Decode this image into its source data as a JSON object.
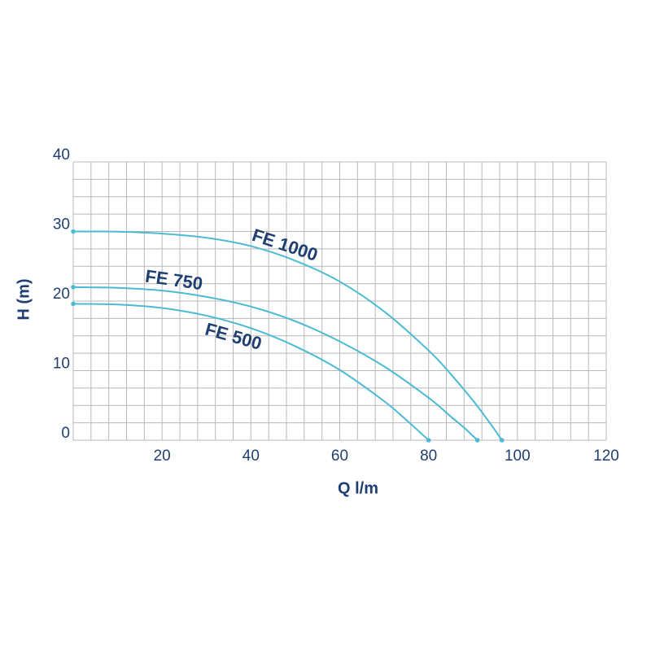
{
  "chart_data": {
    "type": "line",
    "x_label": "Q l/m",
    "y_label": "H (m)",
    "xlim": [
      0,
      120
    ],
    "ylim": [
      0,
      40
    ],
    "xticks": [
      20,
      40,
      60,
      80,
      100,
      120
    ],
    "yticks": [
      0,
      10,
      20,
      30,
      40
    ],
    "x_grid_step": 4,
    "y_grid_step": 2.5,
    "grid": true,
    "series": [
      {
        "name": "FE 1000",
        "color": "#4bbad3",
        "x": [
          0,
          10,
          20,
          30,
          40,
          50,
          60,
          70,
          80,
          85,
          90,
          94,
          96.5
        ],
        "values": [
          30,
          29.97,
          29.7,
          29.1,
          27.9,
          25.8,
          22.8,
          18.5,
          12.9,
          9.5,
          5.7,
          2.3,
          0
        ]
      },
      {
        "name": "FE 750",
        "color": "#4bbad3",
        "x": [
          0,
          10,
          20,
          30,
          40,
          50,
          60,
          70,
          80,
          85,
          88,
          91
        ],
        "values": [
          22,
          21.9,
          21.5,
          20.6,
          19.2,
          17.1,
          14.2,
          10.6,
          6.1,
          3.4,
          1.8,
          0
        ]
      },
      {
        "name": "FE 500",
        "color": "#4bbad3",
        "x": [
          0,
          10,
          20,
          30,
          40,
          50,
          60,
          70,
          75,
          80
        ],
        "values": [
          19.6,
          19.5,
          19.0,
          17.9,
          16.1,
          13.5,
          10.1,
          5.6,
          2.9,
          0
        ]
      }
    ]
  }
}
